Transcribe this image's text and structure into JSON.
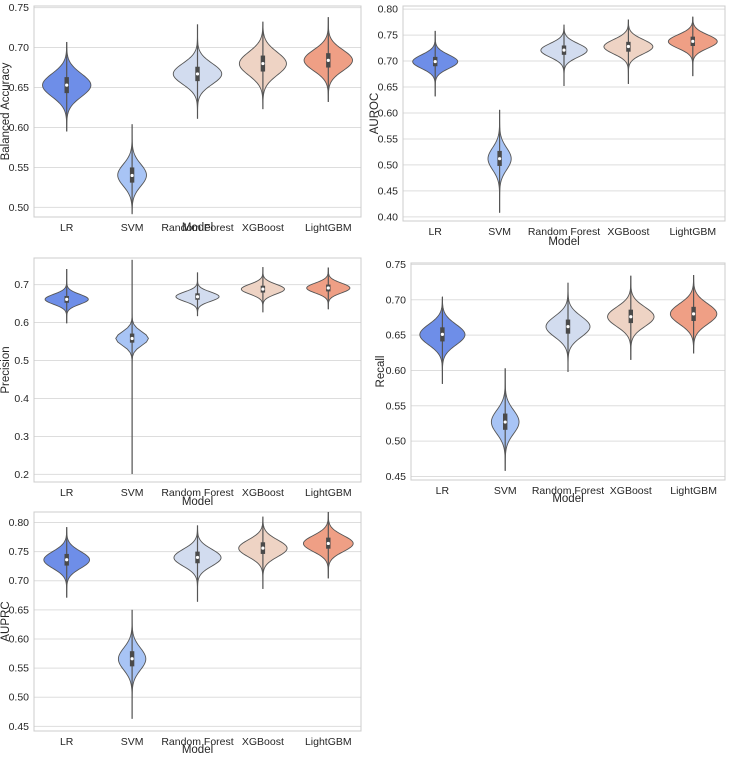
{
  "chart_data": [
    {
      "type": "violin",
      "id": "balanced-accuracy",
      "xlabel": "Model",
      "ylabel": "Balanced Accuracy",
      "categories": [
        "LR",
        "SVM",
        "Random Forest",
        "XGBoost",
        "LightGBM"
      ],
      "colors": [
        "#6e8ee8",
        "#a8c4f5",
        "#d2dcef",
        "#eed3c4",
        "#ef9f85"
      ],
      "yticks": [
        "0.50",
        "0.55",
        "0.60",
        "0.65",
        "0.70",
        "0.75"
      ],
      "ylim": [
        0.488,
        0.752
      ],
      "series": [
        {
          "name": "LR",
          "min": 0.595,
          "max": 0.707,
          "q1": 0.643,
          "median": 0.653,
          "q3": 0.663,
          "width": 0.74
        },
        {
          "name": "SVM",
          "min": 0.492,
          "max": 0.604,
          "q1": 0.531,
          "median": 0.54,
          "q3": 0.55,
          "width": 0.44
        },
        {
          "name": "Random Forest",
          "min": 0.611,
          "max": 0.729,
          "q1": 0.658,
          "median": 0.667,
          "q3": 0.676,
          "width": 0.74
        },
        {
          "name": "XGBoost",
          "min": 0.623,
          "max": 0.732,
          "q1": 0.67,
          "median": 0.68,
          "q3": 0.69,
          "width": 0.72
        },
        {
          "name": "LightGBM",
          "min": 0.632,
          "max": 0.738,
          "q1": 0.675,
          "median": 0.684,
          "q3": 0.693,
          "width": 0.74
        }
      ]
    },
    {
      "type": "violin",
      "id": "auroc",
      "xlabel": "Model",
      "ylabel": "AUROC",
      "categories": [
        "LR",
        "SVM",
        "Random Forest",
        "XGBoost",
        "LightGBM"
      ],
      "colors": [
        "#6e8ee8",
        "#a8c4f5",
        "#d2dcef",
        "#eed3c4",
        "#ef9f85"
      ],
      "yticks": [
        "0.40",
        "0.45",
        "0.50",
        "0.55",
        "0.60",
        "0.65",
        "0.70",
        "0.75",
        "0.80"
      ],
      "ylim": [
        0.392,
        0.806
      ],
      "series": [
        {
          "name": "LR",
          "min": 0.632,
          "max": 0.758,
          "q1": 0.69,
          "median": 0.699,
          "q3": 0.708,
          "width": 0.7
        },
        {
          "name": "SVM",
          "min": 0.408,
          "max": 0.606,
          "q1": 0.498,
          "median": 0.512,
          "q3": 0.527,
          "width": 0.36
        },
        {
          "name": "Random Forest",
          "min": 0.652,
          "max": 0.77,
          "q1": 0.712,
          "median": 0.721,
          "q3": 0.73,
          "width": 0.72
        },
        {
          "name": "XGBoost",
          "min": 0.656,
          "max": 0.78,
          "q1": 0.718,
          "median": 0.728,
          "q3": 0.737,
          "width": 0.76
        },
        {
          "name": "LightGBM",
          "min": 0.671,
          "max": 0.785,
          "q1": 0.729,
          "median": 0.738,
          "q3": 0.747,
          "width": 0.76
        }
      ]
    },
    {
      "type": "violin",
      "id": "precision",
      "xlabel": "Model",
      "ylabel": "Precision",
      "categories": [
        "LR",
        "SVM",
        "Random Forest",
        "XGBoost",
        "LightGBM"
      ],
      "colors": [
        "#6e8ee8",
        "#a8c4f5",
        "#d2dcef",
        "#eed3c4",
        "#ef9f85"
      ],
      "yticks": [
        "0.2",
        "0.3",
        "0.4",
        "0.5",
        "0.6",
        "0.7"
      ],
      "ylim": [
        0.18,
        0.77
      ],
      "series": [
        {
          "name": "LR",
          "min": 0.598,
          "max": 0.741,
          "q1": 0.652,
          "median": 0.661,
          "q3": 0.67,
          "width": 0.66
        },
        {
          "name": "SVM",
          "min": 0.201,
          "max": 0.765,
          "q1": 0.547,
          "median": 0.558,
          "q3": 0.571,
          "width": 0.5
        },
        {
          "name": "Random Forest",
          "min": 0.617,
          "max": 0.732,
          "q1": 0.66,
          "median": 0.668,
          "q3": 0.677,
          "width": 0.66
        },
        {
          "name": "XGBoost",
          "min": 0.627,
          "max": 0.746,
          "q1": 0.679,
          "median": 0.688,
          "q3": 0.697,
          "width": 0.66
        },
        {
          "name": "LightGBM",
          "min": 0.635,
          "max": 0.745,
          "q1": 0.682,
          "median": 0.691,
          "q3": 0.7,
          "width": 0.66
        }
      ]
    },
    {
      "type": "violin",
      "id": "recall",
      "xlabel": "Model",
      "ylabel": "Recall",
      "categories": [
        "LR",
        "SVM",
        "Random Forest",
        "XGBoost",
        "LightGBM"
      ],
      "colors": [
        "#6e8ee8",
        "#a8c4f5",
        "#d2dcef",
        "#eed3c4",
        "#ef9f85"
      ],
      "yticks": [
        "0.45",
        "0.50",
        "0.55",
        "0.60",
        "0.65",
        "0.70",
        "0.75"
      ],
      "ylim": [
        0.445,
        0.752
      ],
      "series": [
        {
          "name": "LR",
          "min": 0.581,
          "max": 0.704,
          "q1": 0.641,
          "median": 0.651,
          "q3": 0.661,
          "width": 0.72
        },
        {
          "name": "SVM",
          "min": 0.458,
          "max": 0.603,
          "q1": 0.516,
          "median": 0.527,
          "q3": 0.539,
          "width": 0.44
        },
        {
          "name": "Random Forest",
          "min": 0.598,
          "max": 0.724,
          "q1": 0.652,
          "median": 0.662,
          "q3": 0.672,
          "width": 0.7
        },
        {
          "name": "XGBoost",
          "min": 0.615,
          "max": 0.734,
          "q1": 0.667,
          "median": 0.676,
          "q3": 0.686,
          "width": 0.74
        },
        {
          "name": "LightGBM",
          "min": 0.624,
          "max": 0.735,
          "q1": 0.67,
          "median": 0.68,
          "q3": 0.69,
          "width": 0.74
        }
      ]
    },
    {
      "type": "violin",
      "id": "auprc",
      "xlabel": "Model",
      "ylabel": "AUPRC",
      "categories": [
        "LR",
        "SVM",
        "Random Forest",
        "XGBoost",
        "LightGBM"
      ],
      "colors": [
        "#6e8ee8",
        "#a8c4f5",
        "#d2dcef",
        "#eed3c4",
        "#ef9f85"
      ],
      "yticks": [
        "0.45",
        "0.50",
        "0.55",
        "0.60",
        "0.65",
        "0.70",
        "0.75",
        "0.80"
      ],
      "ylim": [
        0.442,
        0.818
      ],
      "series": [
        {
          "name": "LR",
          "min": 0.671,
          "max": 0.792,
          "q1": 0.726,
          "median": 0.736,
          "q3": 0.746,
          "width": 0.7
        },
        {
          "name": "SVM",
          "min": 0.463,
          "max": 0.65,
          "q1": 0.553,
          "median": 0.566,
          "q3": 0.579,
          "width": 0.42
        },
        {
          "name": "Random Forest",
          "min": 0.664,
          "max": 0.795,
          "q1": 0.73,
          "median": 0.74,
          "q3": 0.75,
          "width": 0.72
        },
        {
          "name": "XGBoost",
          "min": 0.686,
          "max": 0.81,
          "q1": 0.746,
          "median": 0.756,
          "q3": 0.766,
          "width": 0.74
        },
        {
          "name": "LightGBM",
          "min": 0.704,
          "max": 0.818,
          "q1": 0.755,
          "median": 0.764,
          "q3": 0.774,
          "width": 0.76
        }
      ]
    }
  ]
}
